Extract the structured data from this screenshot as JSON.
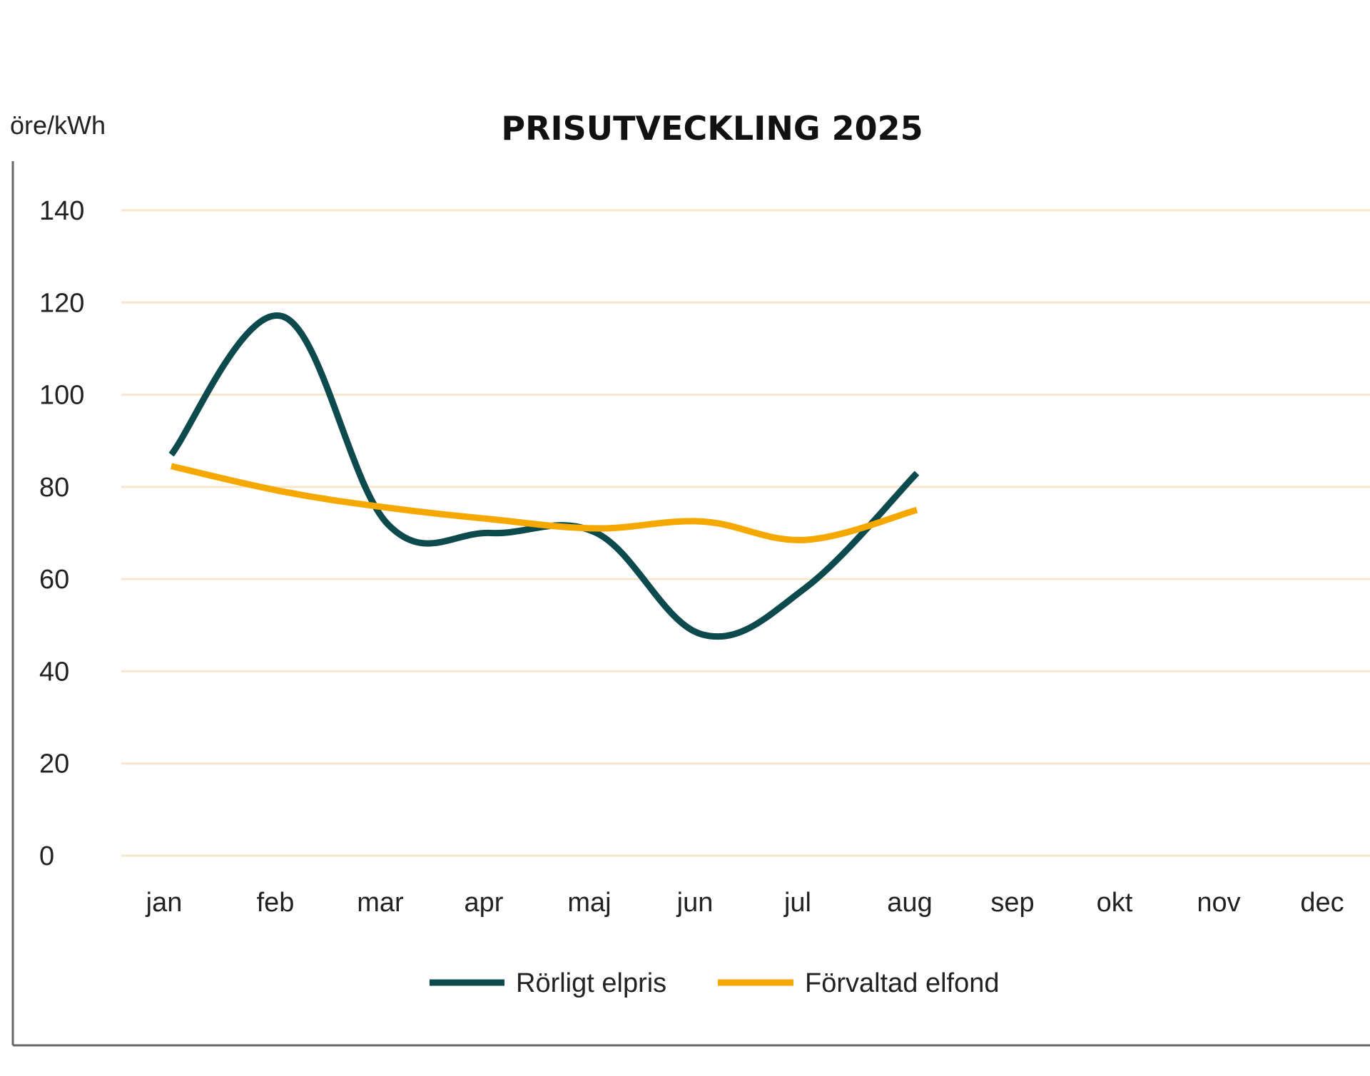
{
  "chart_data": {
    "type": "line",
    "title": "PRISUTVECKLING 2025",
    "ylabel": "öre/kWh",
    "xlabel": "",
    "categories": [
      "jan",
      "feb",
      "mar",
      "apr",
      "maj",
      "jun",
      "jul",
      "aug",
      "sep",
      "okt",
      "nov",
      "dec"
    ],
    "yticks": [
      0,
      20,
      40,
      60,
      80,
      100,
      120,
      140
    ],
    "ylim": [
      0,
      140
    ],
    "grid": true,
    "legend_position": "bottom",
    "series": [
      {
        "name": "Rörligt elpris",
        "color": "#0d4a4e",
        "values": [
          87,
          117,
          72,
          70,
          70,
          48,
          58,
          83,
          null,
          null,
          null,
          null
        ]
      },
      {
        "name": "Förvaltad elfond",
        "color": "#f5a800",
        "values": [
          84.5,
          79,
          75.5,
          73,
          71,
          72.5,
          68.5,
          75,
          null,
          null,
          null,
          null
        ]
      }
    ],
    "colors": {
      "axis": "#666666",
      "grid": "#f7e6cc",
      "text": "#222222"
    }
  }
}
